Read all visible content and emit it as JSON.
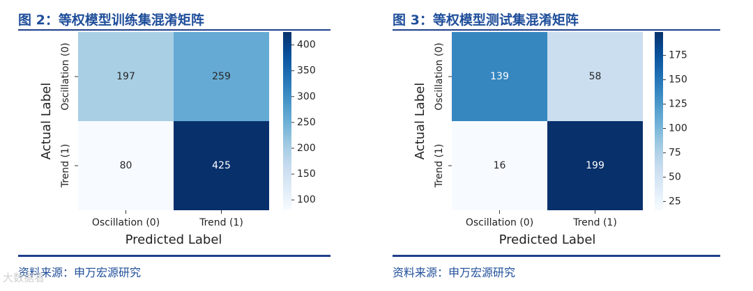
{
  "panels": [
    {
      "title": "图 2：等权模型训练集混淆矩阵",
      "source": "资料来源：申万宏源研究"
    },
    {
      "title": "图 3：等权模型测试集混淆矩阵",
      "source": "资料来源：申万宏源研究"
    }
  ],
  "watermark": "大数据看",
  "colors": {
    "accent": "#1f4e9a",
    "rule": "#1f3f8a",
    "cmap_low": "#f7fbff",
    "cmap_high": "#08306b"
  },
  "chart_data": [
    {
      "type": "heatmap",
      "title": "",
      "xlabel": "Predicted Label",
      "ylabel": "Actual Label",
      "x_categories": [
        "Oscillation (0)",
        "Trend (1)"
      ],
      "y_categories": [
        "Oscillation (0)",
        "Trend (1)"
      ],
      "values": [
        [
          197,
          259
        ],
        [
          80,
          425
        ]
      ],
      "colorbar": {
        "min": 80,
        "max": 425,
        "ticks": [
          100,
          150,
          200,
          250,
          300,
          350,
          400
        ]
      },
      "cmap": "Blues"
    },
    {
      "type": "heatmap",
      "title": "",
      "xlabel": "Predicted Label",
      "ylabel": "Actual Label",
      "x_categories": [
        "Oscillation (0)",
        "Trend (1)"
      ],
      "y_categories": [
        "Oscillation (0)",
        "Trend (1)"
      ],
      "values": [
        [
          139,
          58
        ],
        [
          16,
          199
        ]
      ],
      "colorbar": {
        "min": 16,
        "max": 199,
        "ticks": [
          25,
          50,
          75,
          100,
          125,
          150,
          175
        ]
      },
      "cmap": "Blues"
    }
  ]
}
